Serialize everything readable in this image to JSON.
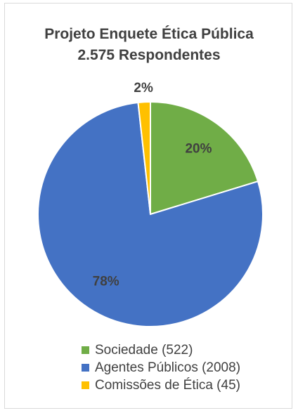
{
  "chart_data": {
    "type": "pie",
    "title": "Projeto Enquete Ética Pública",
    "subtitle": "2.575 Respondentes",
    "slices": [
      {
        "label": "Sociedade (522)",
        "value": 522,
        "percent_label": "20%",
        "color": "#70ad47"
      },
      {
        "label": "Agentes Públicos (2008)",
        "value": 2008,
        "percent_label": "78%",
        "color": "#4472c4"
      },
      {
        "label": "Comissões de Ética (45)",
        "value": 45,
        "percent_label": "2%",
        "color": "#ffc000"
      }
    ],
    "legend_position": "bottom"
  }
}
